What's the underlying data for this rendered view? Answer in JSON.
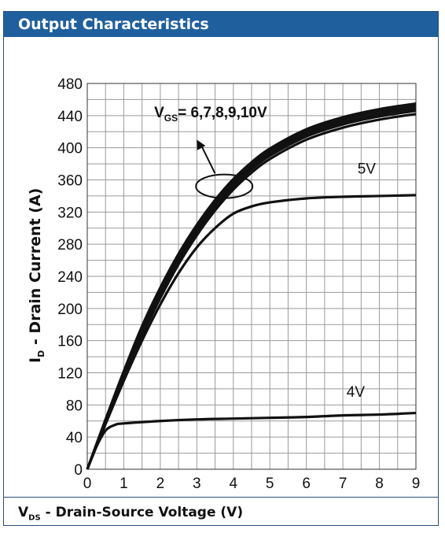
{
  "panel": {
    "title": "Output Characteristics"
  },
  "colors": {
    "header_bg": "#1f5f9e",
    "grid": "#9a9a9a",
    "curve": "#111111"
  },
  "chart_data": {
    "type": "line",
    "title": "Output Characteristics",
    "xlabel": "V_DS - Drain-Source Voltage (V)",
    "xlabel_parts": {
      "main": "V",
      "sub": "DS",
      "rest": " - Drain-Source Voltage (V)"
    },
    "ylabel": "I_D - Drain Current (A)",
    "ylabel_parts": {
      "main": "I",
      "sub": "D",
      "rest": " - Drain Current (A)"
    },
    "xlim": [
      0,
      9
    ],
    "ylim": [
      0,
      480
    ],
    "xticks": [
      0,
      1,
      2,
      3,
      4,
      5,
      6,
      7,
      8,
      9
    ],
    "yticks": [
      0,
      40,
      80,
      120,
      160,
      200,
      240,
      280,
      320,
      360,
      400,
      440,
      480
    ],
    "grid": true,
    "series": [
      {
        "name": "VGS=10V",
        "x": [
          0,
          0.5,
          1,
          1.5,
          2,
          2.5,
          3,
          3.5,
          4,
          4.5,
          5,
          6,
          7,
          8,
          9
        ],
        "y": [
          0,
          62,
          122,
          178,
          226,
          268,
          304,
          335,
          361,
          382,
          399,
          423,
          438,
          448,
          455
        ]
      },
      {
        "name": "VGS=9V",
        "x": [
          0,
          0.5,
          1,
          1.5,
          2,
          2.5,
          3,
          3.5,
          4,
          4.5,
          5,
          6,
          7,
          8,
          9
        ],
        "y": [
          0,
          61,
          120,
          175,
          223,
          265,
          301,
          332,
          358,
          379,
          396,
          420,
          435,
          445,
          452
        ]
      },
      {
        "name": "VGS=8V",
        "x": [
          0,
          0.5,
          1,
          1.5,
          2,
          2.5,
          3,
          3.5,
          4,
          4.5,
          5,
          6,
          7,
          8,
          9
        ],
        "y": [
          0,
          60,
          118,
          172,
          220,
          262,
          298,
          329,
          355,
          376,
          393,
          417,
          432,
          442,
          449
        ]
      },
      {
        "name": "VGS=7V",
        "x": [
          0,
          0.5,
          1,
          1.5,
          2,
          2.5,
          3,
          3.5,
          4,
          4.5,
          5,
          6,
          7,
          8,
          9
        ],
        "y": [
          0,
          59,
          116,
          169,
          217,
          259,
          295,
          326,
          352,
          373,
          390,
          414,
          429,
          439,
          446
        ]
      },
      {
        "name": "VGS=6V",
        "x": [
          0,
          0.5,
          1,
          1.5,
          2,
          2.5,
          3,
          3.5,
          4,
          4.5,
          5,
          6,
          7,
          8,
          9
        ],
        "y": [
          0,
          58,
          114,
          166,
          213,
          255,
          291,
          322,
          348,
          369,
          386,
          410,
          425,
          435,
          442
        ]
      },
      {
        "name": "VGS=5V",
        "x": [
          0,
          0.5,
          1,
          1.5,
          2,
          2.5,
          3,
          3.5,
          4,
          4.5,
          5,
          6,
          7,
          8,
          9
        ],
        "y": [
          0,
          56,
          110,
          160,
          205,
          244,
          276,
          300,
          318,
          327,
          332,
          337,
          339,
          340,
          341
        ]
      },
      {
        "name": "VGS=4V",
        "x": [
          0,
          0.25,
          0.5,
          0.75,
          1,
          2,
          3,
          4,
          5,
          6,
          7,
          8,
          9
        ],
        "y": [
          0,
          28,
          48,
          55,
          57,
          60,
          62,
          63,
          64,
          65,
          67,
          68,
          70
        ]
      }
    ],
    "annotations": [
      {
        "text": "VGS= 6,7,8,9,10V",
        "main": "V",
        "sub": "GS",
        "rest": "= 6,7,8,9,10V",
        "at": [
          4.2,
          438
        ]
      },
      {
        "text": "5V",
        "at": [
          7.4,
          368
        ]
      },
      {
        "text": "4V",
        "at": [
          7.1,
          90
        ]
      }
    ]
  }
}
